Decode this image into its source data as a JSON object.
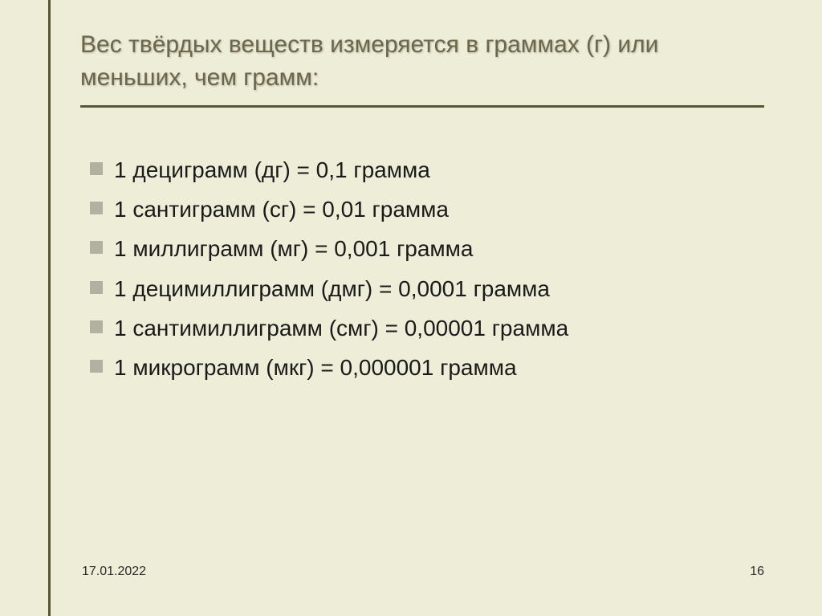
{
  "slide": {
    "background_color": "#eeedd8",
    "accent_color": "#5a5537",
    "title_color": "#6d6648",
    "bullet_color": "#b2b0a1",
    "text_color": "#1a1a1a",
    "title_fontsize": 30,
    "body_fontsize": 28,
    "footer_fontsize": 16,
    "title": "Вес твёрдых веществ измеряется в граммах (г) или меньших, чем грамм:",
    "items": [
      "1 дециграмм (дг) = 0,1 грамма",
      "1 сантиграмм (сг) = 0,01 грамма",
      "1 миллиграмм (мг) = 0,001 грамма",
      "1 децимиллиграмм (дмг) = 0,0001 грамма",
      "1 сантимиллиграмм (смг) = 0,00001 грамма",
      "1 микрограмм (мкг) = 0,000001 грамма"
    ],
    "footer": {
      "date": "17.01.2022",
      "page": "16"
    }
  }
}
